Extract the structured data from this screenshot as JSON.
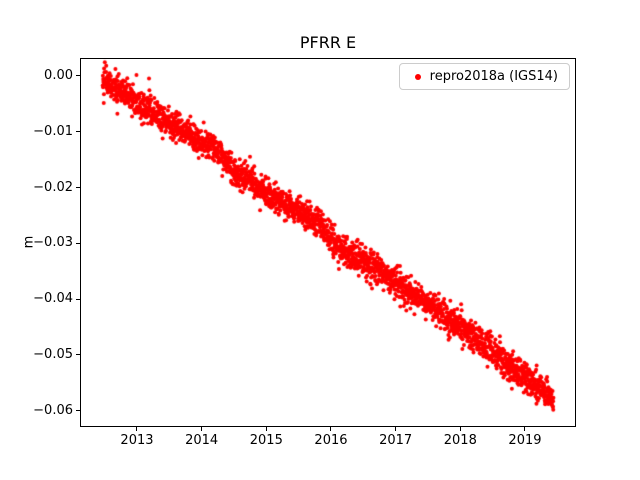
{
  "figure": {
    "background": "#ffffff"
  },
  "chart_data": {
    "type": "scatter",
    "title": "PFRR E",
    "xlabel": "",
    "ylabel": "m",
    "grid": false,
    "xlim": [
      2012.119,
      2019.789
    ],
    "ylim": [
      -0.0629,
      0.0032
    ],
    "x_ticks": [
      2013,
      2014,
      2015,
      2016,
      2017,
      2018,
      2019
    ],
    "x_tick_labels": [
      "2013",
      "2014",
      "2015",
      "2016",
      "2017",
      "2018",
      "2019"
    ],
    "y_ticks": [
      0.0,
      -0.01,
      -0.02,
      -0.03,
      -0.04,
      -0.05,
      -0.06
    ],
    "y_tick_labels": [
      "0.00",
      "−0.01",
      "−0.02",
      "−0.03",
      "−0.04",
      "−0.05",
      "−0.06"
    ],
    "legend": {
      "position": "upper right",
      "entries": [
        {
          "label": "repro2018a (IGS14)",
          "color": "#ff0000",
          "marker": "dot"
        }
      ]
    },
    "series": [
      {
        "name": "repro2018a (IGS14)",
        "color": "#ff0000",
        "marker_radius_px": 2.0,
        "n_points": 2550,
        "x_start": 2012.47,
        "x_end": 2019.44,
        "noise_std": 0.0013,
        "outlier_rate": 0.006,
        "outlier_scale": 0.004,
        "trend_points": [
          [
            2012.47,
            -0.0005
          ],
          [
            2012.75,
            -0.0025
          ],
          [
            2013.0,
            -0.005
          ],
          [
            2013.5,
            -0.0085
          ],
          [
            2014.0,
            -0.012
          ],
          [
            2014.15,
            -0.0125
          ],
          [
            2014.5,
            -0.017
          ],
          [
            2015.0,
            -0.021
          ],
          [
            2015.5,
            -0.0245
          ],
          [
            2015.8,
            -0.026
          ],
          [
            2016.0,
            -0.0295
          ],
          [
            2016.2,
            -0.0315
          ],
          [
            2016.5,
            -0.033
          ],
          [
            2017.0,
            -0.037
          ],
          [
            2017.5,
            -0.041
          ],
          [
            2018.0,
            -0.045
          ],
          [
            2018.5,
            -0.0495
          ],
          [
            2019.0,
            -0.054
          ],
          [
            2019.44,
            -0.058
          ]
        ]
      }
    ]
  }
}
